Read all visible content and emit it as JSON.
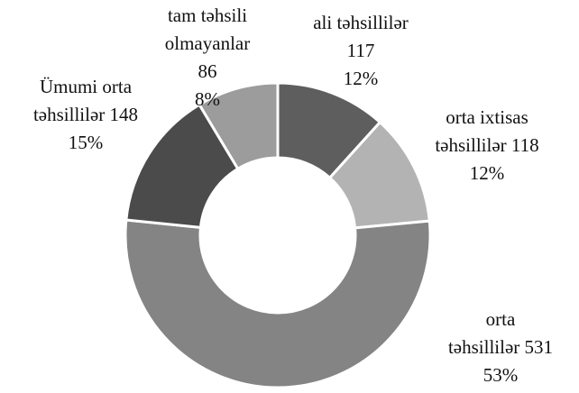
{
  "chart_data": {
    "type": "donut",
    "categories": [
      "ali təhsillilər",
      "orta ixtisas\ntəhsillilər",
      "orta\ntəhsillilər",
      "Ümumi orta\ntəhsillilər",
      "tam təhsili\nolmayanlar"
    ],
    "values": [
      117,
      118,
      531,
      148,
      86
    ],
    "percent_labels": [
      "12%",
      "12%",
      "53%",
      "15%",
      "8%"
    ],
    "colors": [
      "#5e5e5e",
      "#b3b3b3",
      "#848484",
      "#4b4b4b",
      "#9c9c9c"
    ]
  }
}
